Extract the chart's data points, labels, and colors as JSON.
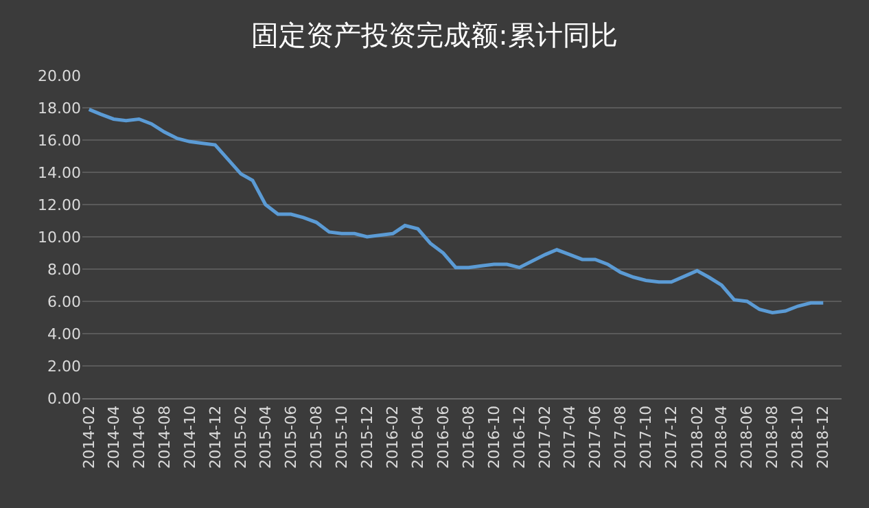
{
  "chart_data": {
    "type": "line",
    "title": "固定资产投资完成额:累计同比",
    "x": [
      "2014-02",
      "2014-03",
      "2014-04",
      "2014-05",
      "2014-06",
      "2014-07",
      "2014-08",
      "2014-09",
      "2014-10",
      "2014-11",
      "2014-12",
      "2015-02",
      "2015-03",
      "2015-04",
      "2015-05",
      "2015-06",
      "2015-07",
      "2015-08",
      "2015-09",
      "2015-10",
      "2015-11",
      "2015-12",
      "2016-02",
      "2016-03",
      "2016-04",
      "2016-05",
      "2016-06",
      "2016-07",
      "2016-08",
      "2016-09",
      "2016-10",
      "2016-11",
      "2016-12",
      "2017-02",
      "2017-03",
      "2017-04",
      "2017-05",
      "2017-06",
      "2017-07",
      "2017-08",
      "2017-09",
      "2017-10",
      "2017-11",
      "2017-12",
      "2018-02",
      "2018-03",
      "2018-04",
      "2018-05",
      "2018-06",
      "2018-07",
      "2018-08",
      "2018-09",
      "2018-10",
      "2018-11",
      "2018-12"
    ],
    "series": [
      {
        "color": "#5b9bd5",
        "values": [
          17.9,
          17.6,
          17.3,
          17.2,
          17.3,
          17.0,
          16.5,
          16.1,
          15.9,
          15.8,
          15.7,
          13.9,
          13.5,
          12.0,
          11.4,
          11.4,
          11.2,
          10.9,
          10.3,
          10.2,
          10.2,
          10.0,
          10.2,
          10.7,
          10.5,
          9.6,
          9.0,
          8.1,
          8.1,
          8.2,
          8.3,
          8.3,
          8.1,
          8.9,
          9.2,
          8.9,
          8.6,
          8.6,
          8.3,
          7.8,
          7.5,
          7.3,
          7.2,
          7.2,
          7.9,
          7.5,
          7.0,
          6.1,
          6.0,
          5.5,
          5.3,
          5.4,
          5.7,
          5.9,
          5.9
        ]
      }
    ],
    "xlim": [
      "2014-01-16",
      "2019-01-14"
    ],
    "xticks": [
      "2014-02",
      "2014-04",
      "2014-06",
      "2014-08",
      "2014-10",
      "2014-12",
      "2015-02",
      "2015-04",
      "2015-06",
      "2015-08",
      "2015-10",
      "2015-12",
      "2016-02",
      "2016-04",
      "2016-06",
      "2016-08",
      "2016-10",
      "2016-12",
      "2017-02",
      "2017-04",
      "2017-06",
      "2017-08",
      "2017-10",
      "2017-12",
      "2018-02",
      "2018-04",
      "2018-06",
      "2018-08",
      "2018-10",
      "2018-12"
    ],
    "ylim": [
      0,
      20
    ],
    "yticks": [
      {
        "value": 0,
        "label": "0.00"
      },
      {
        "value": 2,
        "label": "2.00"
      },
      {
        "value": 4,
        "label": "4.00"
      },
      {
        "value": 6,
        "label": "6.00"
      },
      {
        "value": 8,
        "label": "8.00"
      },
      {
        "value": 10,
        "label": "10.00"
      },
      {
        "value": 12,
        "label": "12.00"
      },
      {
        "value": 14,
        "label": "14.00"
      },
      {
        "value": 16,
        "label": "16.00"
      },
      {
        "value": 18,
        "label": "18.00"
      },
      {
        "value": 20,
        "label": "20.00"
      }
    ],
    "grid": "y",
    "marker": "none",
    "line_style": "solid"
  }
}
